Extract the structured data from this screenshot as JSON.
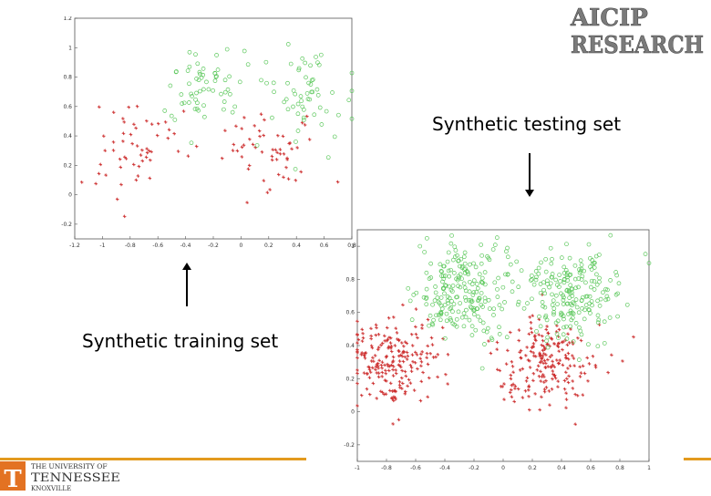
{
  "captions": {
    "testing": "Synthetic testing set",
    "training": "Synthetic training set"
  },
  "logo": {
    "line1": "AICIP",
    "line2": "RESEARCH"
  },
  "university": {
    "line1": "THE UNIVERSITY OF",
    "line2": "TENNESSEE",
    "line3": "KNOXVILLE",
    "mark": "T"
  },
  "colors": {
    "class_a": "#cc2a2a",
    "class_b": "#5cc85c",
    "accent": "#e39a1e",
    "ut_orange": "#e37222"
  },
  "chart_data": [
    {
      "type": "scatter",
      "name": "training",
      "xlim": [
        -1.2,
        0.8
      ],
      "ylim": [
        -0.3,
        1.2
      ],
      "xticks": [
        -1.2,
        -1,
        -0.8,
        -0.6,
        -0.4,
        -0.2,
        0,
        0.2,
        0.4,
        0.6,
        0.8
      ],
      "xtick_labels": [
        "-1.2",
        "-1",
        "-0.8",
        "-0.6",
        "-0.4",
        "-0.2",
        "0",
        "0.2",
        "0.4",
        "0.6",
        "0.8"
      ],
      "yticks": [
        -0.2,
        0,
        0.2,
        0.4,
        0.6,
        0.8,
        1,
        1.2
      ],
      "ytick_labels": [
        "-0.2",
        "0",
        "0.2",
        "0.4",
        "0.6",
        "0.8",
        "1",
        "1.2"
      ],
      "series": [
        {
          "marker": "cross",
          "color": "#cc2a2a",
          "count": 110,
          "clusters": [
            {
              "cx": -0.75,
              "cy": 0.3,
              "sx": 0.16,
              "sy": 0.16
            },
            {
              "cx": 0.2,
              "cy": 0.3,
              "sx": 0.16,
              "sy": 0.14
            }
          ]
        },
        {
          "marker": "circle",
          "color": "#5cc85c",
          "count": 120,
          "clusters": [
            {
              "cx": -0.25,
              "cy": 0.75,
              "sx": 0.15,
              "sy": 0.14
            },
            {
              "cx": 0.4,
              "cy": 0.65,
              "sx": 0.16,
              "sy": 0.18
            }
          ]
        }
      ]
    },
    {
      "type": "scatter",
      "name": "testing",
      "xlim": [
        -1,
        1
      ],
      "ylim": [
        -0.3,
        1.1
      ],
      "xticks": [
        -1,
        -0.8,
        -0.6,
        -0.4,
        -0.2,
        0,
        0.2,
        0.4,
        0.6,
        0.8,
        1
      ],
      "xtick_labels": [
        "-1",
        "-0.8",
        "-0.6",
        "-0.4",
        "-0.2",
        "0",
        "0.2",
        "0.4",
        "0.6",
        "0.8",
        "1"
      ],
      "yticks": [
        -0.2,
        0,
        0.2,
        0.4,
        0.6,
        0.8,
        1
      ],
      "ytick_labels": [
        "-0.2",
        "0",
        "0.2",
        "0.4",
        "0.6",
        "0.8",
        "1"
      ],
      "series": [
        {
          "marker": "cross",
          "color": "#cc2a2a",
          "count": 420,
          "clusters": [
            {
              "cx": -0.75,
              "cy": 0.3,
              "sx": 0.16,
              "sy": 0.15
            },
            {
              "cx": 0.3,
              "cy": 0.3,
              "sx": 0.17,
              "sy": 0.14
            }
          ]
        },
        {
          "marker": "circle",
          "color": "#5cc85c",
          "count": 420,
          "clusters": [
            {
              "cx": -0.3,
              "cy": 0.72,
              "sx": 0.17,
              "sy": 0.14
            },
            {
              "cx": 0.45,
              "cy": 0.72,
              "sx": 0.18,
              "sy": 0.15
            }
          ]
        }
      ]
    }
  ]
}
